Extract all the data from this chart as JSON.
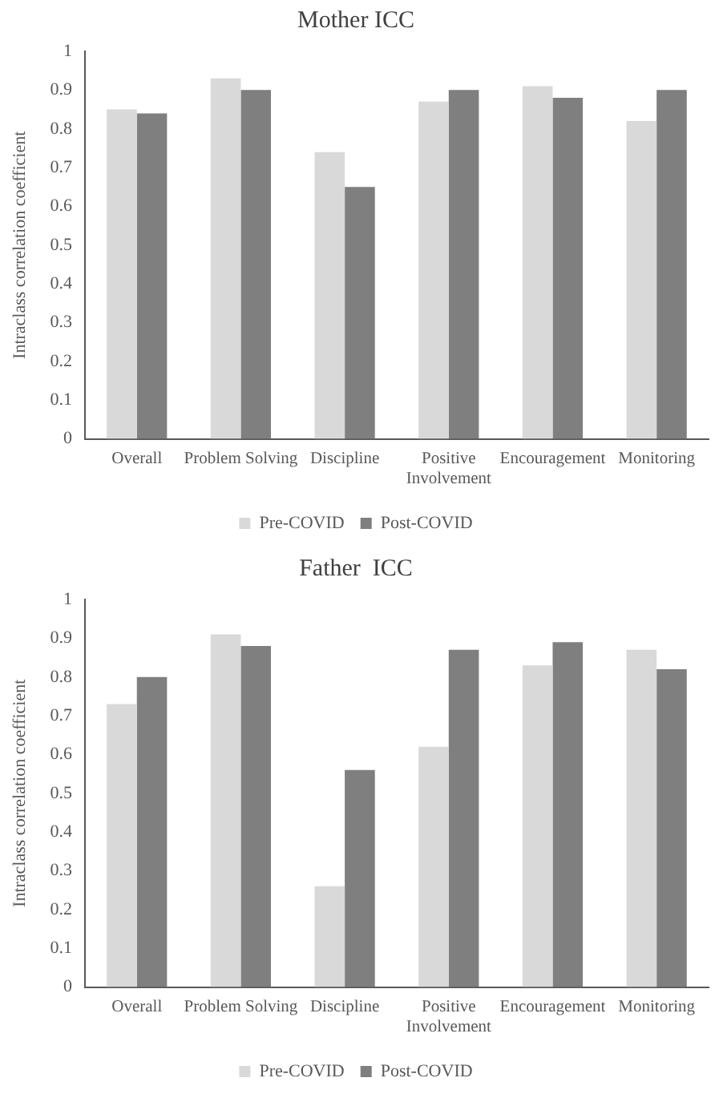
{
  "chart_data": [
    {
      "type": "bar",
      "title": "Mother ICC",
      "ylabel": "Intraclass correlation coefficient",
      "categories": [
        "Overall",
        "Problem Solving",
        "Discipline",
        "Positive Involvement",
        "Encouragement",
        "Monitoring"
      ],
      "series": [
        {
          "name": "Pre-COVID",
          "color": "#d9d9d9",
          "values": [
            0.85,
            0.93,
            0.74,
            0.87,
            0.91,
            0.82
          ]
        },
        {
          "name": "Post-COVID",
          "color": "#7f7f7f",
          "values": [
            0.84,
            0.9,
            0.65,
            0.9,
            0.88,
            0.9
          ]
        }
      ],
      "ylim": [
        0,
        1
      ],
      "yticks": [
        0,
        0.1,
        0.2,
        0.3,
        0.4,
        0.5,
        0.6,
        0.7,
        0.8,
        0.9,
        1
      ],
      "grid": false,
      "legend": "bottom"
    },
    {
      "type": "bar",
      "title": "Father  ICC",
      "ylabel": "Intraclass correlation coefficient",
      "categories": [
        "Overall",
        "Problem Solving",
        "Discipline",
        "Positive Involvement",
        "Encouragement",
        "Monitoring"
      ],
      "series": [
        {
          "name": "Pre-COVID",
          "color": "#d9d9d9",
          "values": [
            0.73,
            0.91,
            0.26,
            0.62,
            0.83,
            0.87
          ]
        },
        {
          "name": "Post-COVID",
          "color": "#7f7f7f",
          "values": [
            0.8,
            0.88,
            0.56,
            0.87,
            0.89,
            0.82
          ]
        }
      ],
      "ylim": [
        0,
        1
      ],
      "yticks": [
        0,
        0.1,
        0.2,
        0.3,
        0.4,
        0.5,
        0.6,
        0.7,
        0.8,
        0.9,
        1
      ],
      "grid": false,
      "legend": "bottom"
    }
  ]
}
